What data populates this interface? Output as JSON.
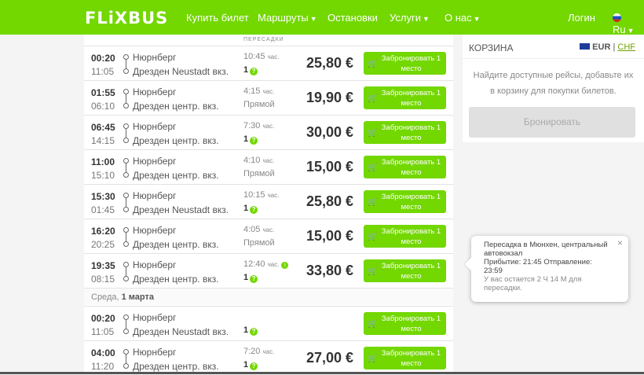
{
  "header": {
    "logo": "FLiXBUS",
    "nav": [
      {
        "label": "Купить билет",
        "dropdown": false
      },
      {
        "label": "Маршруты",
        "dropdown": true
      },
      {
        "label": "Остановки",
        "dropdown": false
      },
      {
        "label": "Услуги",
        "dropdown": true
      },
      {
        "label": "О нас",
        "dropdown": true
      }
    ],
    "login": "Логин",
    "language": "Ru",
    "brand_color": "#73d700"
  },
  "list": {
    "column_header": "ПЕРЕСАДКИ",
    "book_label": "Забронировать 1 место",
    "duration_unit": "час.",
    "rows": [
      {
        "dep": "00:20",
        "arr": "11:05",
        "from": "Нюрнберг",
        "to": "Дрезден Neustadt вкз.",
        "duration": "10:45",
        "transfers": "1",
        "price": "25,80 €"
      },
      {
        "dep": "01:55",
        "arr": "06:10",
        "from": "Нюрнберг",
        "to": "Дрезден центр. вкз.",
        "duration": "4:15",
        "transfers": "Прямой",
        "price": "19,90 €"
      },
      {
        "dep": "06:45",
        "arr": "14:15",
        "from": "Нюрнберг",
        "to": "Дрезден центр. вкз.",
        "duration": "7:30",
        "transfers": "1",
        "price": "30,00 €"
      },
      {
        "dep": "11:00",
        "arr": "15:10",
        "from": "Нюрнберг",
        "to": "Дрезден центр. вкз.",
        "duration": "4:10",
        "transfers": "Прямой",
        "price": "15,00 €"
      },
      {
        "dep": "15:30",
        "arr": "01:45",
        "from": "Нюрнберг",
        "to": "Дрезден Neustadt вкз.",
        "duration": "10:15",
        "transfers": "1",
        "price": "25,80 €"
      },
      {
        "dep": "16:20",
        "arr": "20:25",
        "from": "Нюрнберг",
        "to": "Дрезден центр. вкз.",
        "duration": "4:05",
        "transfers": "Прямой",
        "price": "15,00 €"
      },
      {
        "dep": "19:35",
        "arr": "08:15",
        "from": "Нюрнберг",
        "to": "Дрезден центр. вкз.",
        "duration": "12:40",
        "transfers": "1",
        "price": "33,80 €",
        "info": true
      }
    ],
    "date_separator": {
      "weekday": "Среда,",
      "date": "1 марта"
    },
    "rows2": [
      {
        "dep": "00:20",
        "arr": "11:05",
        "from": "Нюрнберг",
        "to": "Дрезден Neustadt вкз.",
        "duration": "",
        "transfers": "1",
        "price": ""
      },
      {
        "dep": "04:00",
        "arr": "11:20",
        "from": "Нюрнберг",
        "to": "Дрезден центр. вкз.",
        "duration": "7:20",
        "transfers": "1",
        "price": "27,00 €"
      }
    ]
  },
  "cart": {
    "title": "КОРЗИНА",
    "currency_active": "EUR",
    "currency_sep": "|",
    "currency_other": "CHF",
    "empty_text": "Найдите доступные рейсы, добавьте их в корзину для покупки билетов.",
    "book_button": "Бронировать"
  },
  "tooltip": {
    "line1": "Пересадка в Мюнхен, центральный автовокзал",
    "line2": "Прибытие: 21:45 Отправление: 23:59",
    "line3": "У вас остается 2 Ч 14 М для пересадки.",
    "close": "×"
  }
}
